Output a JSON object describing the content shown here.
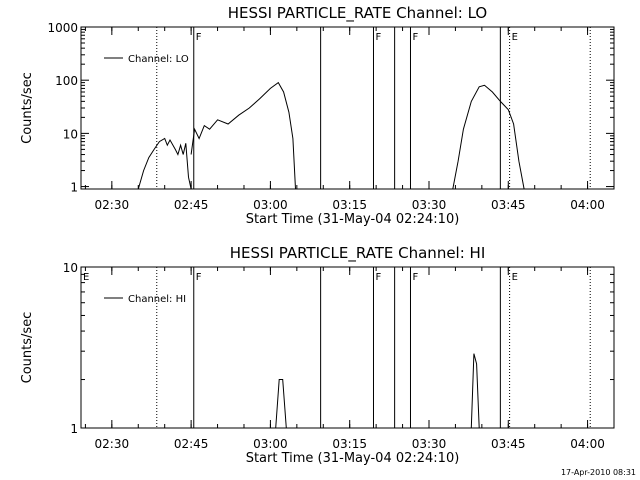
{
  "chart_data": [
    {
      "type": "line",
      "title": "HESSI PARTICLE_RATE Channel: LO",
      "xlabel": "Start Time (31-May-04 02:24:10)",
      "ylabel": "Counts/sec",
      "yscale": "log",
      "ylim": [
        0.9,
        1000
      ],
      "xlim": [
        "02:24:10",
        "04:05"
      ],
      "xticks": [
        "02:30",
        "02:45",
        "03:00",
        "03:15",
        "03:30",
        "03:45",
        "04:00"
      ],
      "yticks": [
        "1",
        "10",
        "100",
        "1000"
      ],
      "series": [
        {
          "name": "Channel: LO",
          "segments": [
            {
              "x": [
                "02:35:00",
                "02:36:00",
                "02:37:00",
                "02:38:00",
                "02:39:00",
                "02:40:00",
                "02:40:30",
                "02:41:00",
                "02:42:00",
                "02:42:30",
                "02:43:00",
                "02:43:30",
                "02:44:00",
                "02:44:30",
                "02:45:00"
              ],
              "y": [
                0.9,
                2.0,
                3.5,
                5.0,
                7.0,
                8.0,
                6.0,
                7.5,
                5.0,
                4.0,
                6.0,
                4.0,
                6.5,
                1.5,
                0.9
              ]
            },
            {
              "x": [
                "02:45:00",
                "02:45:40",
                "02:46:30",
                "02:47:30",
                "02:48:30",
                "02:50:00",
                "02:52:00",
                "02:54:00",
                "02:56:00",
                "02:58:00",
                "03:00:00",
                "03:01:30",
                "03:02:30",
                "03:03:30",
                "03:04:15",
                "03:04:45"
              ],
              "y": [
                4.0,
                12.0,
                8.0,
                14.0,
                12.0,
                18.0,
                15.0,
                22.0,
                30.0,
                45.0,
                70.0,
                90.0,
                60.0,
                25.0,
                8.0,
                0.9
              ]
            },
            {
              "x": [
                "03:34:30",
                "03:35:30",
                "03:36:30",
                "03:38:00",
                "03:39:30",
                "03:40:30",
                "03:42:00",
                "03:43:30",
                "03:45:00",
                "03:46:00",
                "03:47:00",
                "03:48:00"
              ],
              "y": [
                0.9,
                3.0,
                12.0,
                40.0,
                75.0,
                80.0,
                60.0,
                40.0,
                28.0,
                15.0,
                3.0,
                0.9
              ]
            }
          ]
        }
      ],
      "solid_lines_x": [
        "02:45:30",
        "03:09:30",
        "03:19:30",
        "03:23:30",
        "03:26:30",
        "03:43:30"
      ],
      "dotted_lines_x": [
        "02:38:30",
        "03:45:15",
        "04:00:30"
      ],
      "flag_labels": [
        {
          "text": "F",
          "x": "02:45:30"
        },
        {
          "text": "F",
          "x": "03:19:30"
        },
        {
          "text": "F",
          "x": "03:26:30"
        },
        {
          "text": "E",
          "x": "03:45:15"
        }
      ],
      "legend_position": "top-left"
    },
    {
      "type": "line",
      "title": "HESSI PARTICLE_RATE Channel: HI",
      "xlabel": "Start Time (31-May-04 02:24:10)",
      "ylabel": "Counts/sec",
      "yscale": "log",
      "ylim": [
        1,
        10
      ],
      "xlim": [
        "02:24:10",
        "04:05"
      ],
      "xticks": [
        "02:30",
        "02:45",
        "03:00",
        "03:15",
        "03:30",
        "03:45",
        "04:00"
      ],
      "yticks": [
        "1",
        "10"
      ],
      "series": [
        {
          "name": "Channel: HI",
          "segments": [
            {
              "x": [
                "03:01:00",
                "03:01:40",
                "03:02:20",
                "03:03:00"
              ],
              "y": [
                1.0,
                2.0,
                2.0,
                1.0
              ]
            },
            {
              "x": [
                "03:38:00",
                "03:38:30",
                "03:39:00",
                "03:39:30"
              ],
              "y": [
                1.0,
                2.9,
                2.5,
                1.0
              ]
            }
          ]
        }
      ],
      "solid_lines_x": [
        "02:45:30",
        "03:09:30",
        "03:19:30",
        "03:23:30",
        "03:26:30",
        "03:43:30"
      ],
      "dotted_lines_x": [
        "02:38:30",
        "03:45:15",
        "04:00:30"
      ],
      "flag_labels": [
        {
          "text": "E",
          "x": "02:24:10"
        },
        {
          "text": "F",
          "x": "02:45:30"
        },
        {
          "text": "F",
          "x": "03:19:30"
        },
        {
          "text": "F",
          "x": "03:26:30"
        },
        {
          "text": "E",
          "x": "03:45:15"
        }
      ],
      "legend_position": "top-left"
    }
  ],
  "timestamp": "17-Apr-2010 08:31"
}
